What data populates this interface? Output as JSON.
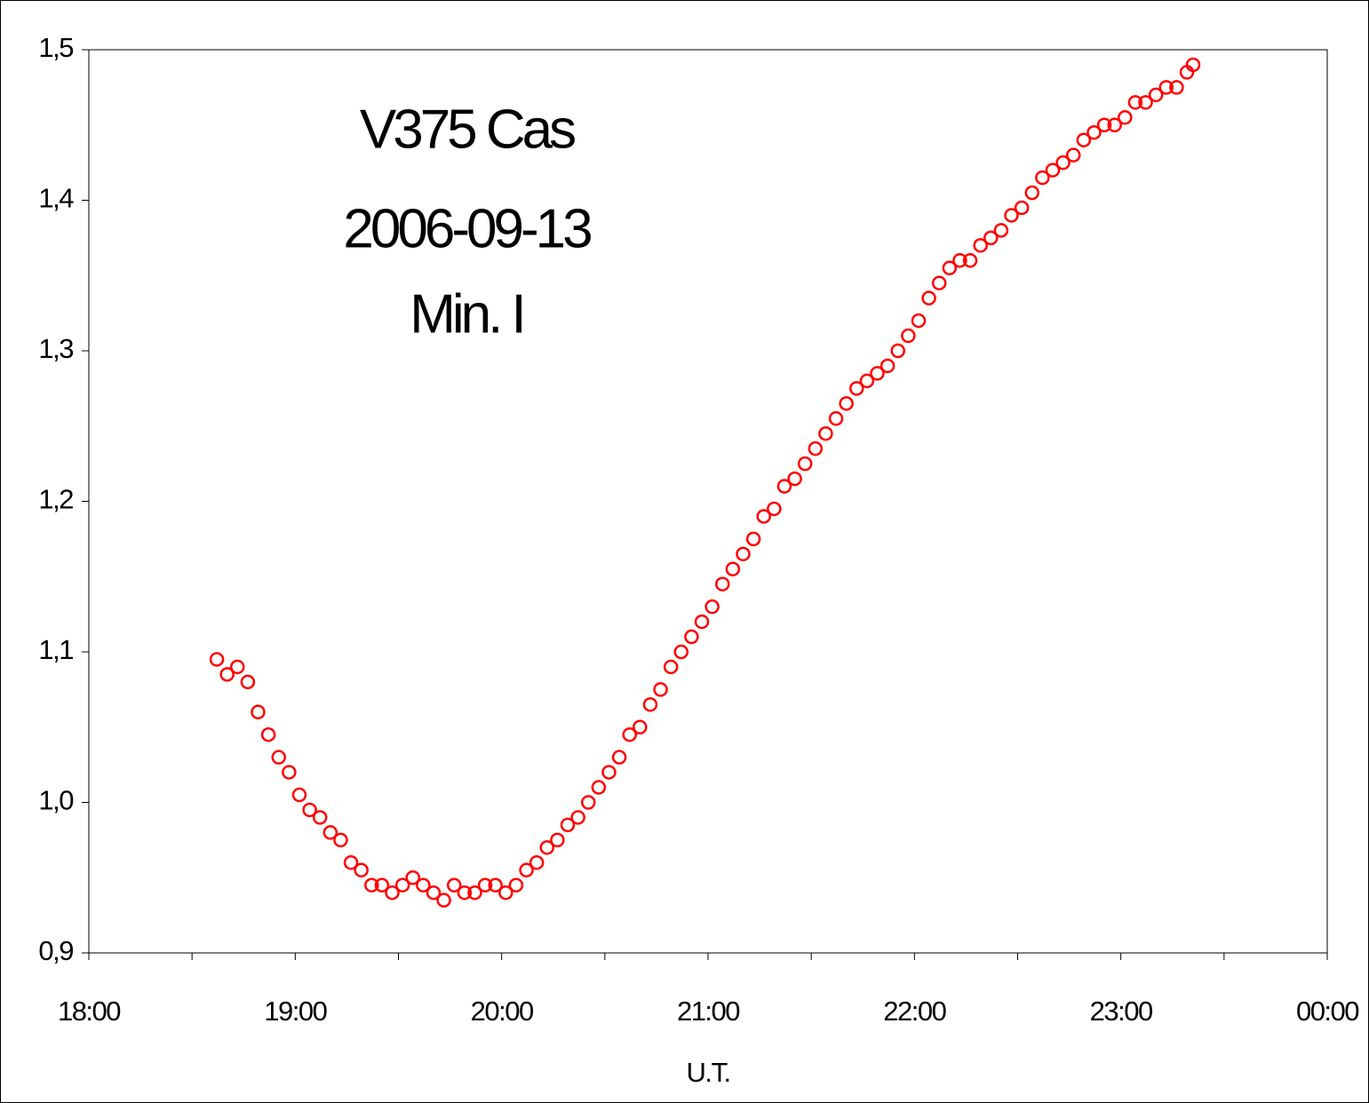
{
  "chart_data": {
    "type": "scatter",
    "annotations": [
      "V375 Cas",
      "2006-09-13",
      "Min. I"
    ],
    "xlabel": "U.T.",
    "color": "#ff0000",
    "xlim": [
      18,
      24
    ],
    "xticks": [
      {
        "value": 18,
        "label": "18:00"
      },
      {
        "value": 19,
        "label": "19:00"
      },
      {
        "value": 20,
        "label": "20:00"
      },
      {
        "value": 21,
        "label": "21:00"
      },
      {
        "value": 22,
        "label": "22:00"
      },
      {
        "value": 23,
        "label": "23:00"
      },
      {
        "value": 24,
        "label": "00:00"
      }
    ],
    "xminorticks": [
      18.5,
      19.5,
      20.5,
      21.5,
      22.5,
      23.5
    ],
    "ylim": [
      0.9,
      1.5
    ],
    "yticks": [
      {
        "value": 0.9,
        "label": "0,9"
      },
      {
        "value": 1.0,
        "label": "1,0"
      },
      {
        "value": 1.1,
        "label": "1,1"
      },
      {
        "value": 1.2,
        "label": "1,2"
      },
      {
        "value": 1.3,
        "label": "1,3"
      },
      {
        "value": 1.4,
        "label": "1,4"
      },
      {
        "value": 1.5,
        "label": "1,5"
      }
    ],
    "x": [
      18.62,
      18.67,
      18.72,
      18.77,
      18.82,
      18.87,
      18.92,
      18.97,
      19.02,
      19.07,
      19.12,
      19.17,
      19.22,
      19.27,
      19.32,
      19.37,
      19.42,
      19.47,
      19.52,
      19.57,
      19.62,
      19.67,
      19.72,
      19.77,
      19.82,
      19.87,
      19.92,
      19.97,
      20.02,
      20.07,
      20.12,
      20.17,
      20.22,
      20.27,
      20.32,
      20.37,
      20.42,
      20.47,
      20.52,
      20.57,
      20.62,
      20.67,
      20.72,
      20.77,
      20.82,
      20.87,
      20.92,
      20.97,
      21.02,
      21.07,
      21.12,
      21.17,
      21.22,
      21.27,
      21.32,
      21.37,
      21.42,
      21.47,
      21.52,
      21.57,
      21.62,
      21.67,
      21.72,
      21.77,
      21.82,
      21.87,
      21.92,
      21.97,
      22.02,
      22.07,
      22.12,
      22.17,
      22.22,
      22.27,
      22.32,
      22.37,
      22.42,
      22.47,
      22.52,
      22.57,
      22.62,
      22.67,
      22.72,
      22.77,
      22.82,
      22.87,
      22.92,
      22.97,
      23.02,
      23.07,
      23.12,
      23.17,
      23.22,
      23.27,
      23.32,
      23.35
    ],
    "values": [
      1.095,
      1.085,
      1.09,
      1.08,
      1.06,
      1.045,
      1.03,
      1.02,
      1.005,
      0.995,
      0.99,
      0.98,
      0.975,
      0.96,
      0.955,
      0.945,
      0.945,
      0.94,
      0.945,
      0.95,
      0.945,
      0.94,
      0.935,
      0.945,
      0.94,
      0.94,
      0.945,
      0.945,
      0.94,
      0.945,
      0.955,
      0.96,
      0.97,
      0.975,
      0.985,
      0.99,
      1.0,
      1.01,
      1.02,
      1.03,
      1.045,
      1.05,
      1.065,
      1.075,
      1.09,
      1.1,
      1.11,
      1.12,
      1.13,
      1.145,
      1.155,
      1.165,
      1.175,
      1.19,
      1.195,
      1.21,
      1.215,
      1.225,
      1.235,
      1.245,
      1.255,
      1.265,
      1.275,
      1.28,
      1.285,
      1.29,
      1.3,
      1.31,
      1.32,
      1.335,
      1.345,
      1.355,
      1.36,
      1.36,
      1.37,
      1.375,
      1.38,
      1.39,
      1.395,
      1.405,
      1.415,
      1.42,
      1.425,
      1.43,
      1.44,
      1.445,
      1.45,
      1.45,
      1.455,
      1.465,
      1.465,
      1.47,
      1.475,
      1.475,
      1.485,
      1.49
    ]
  }
}
